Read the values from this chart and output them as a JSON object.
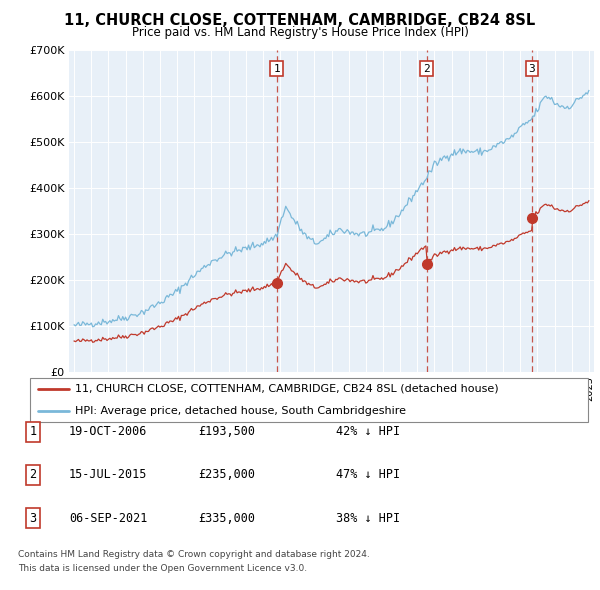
{
  "title": "11, CHURCH CLOSE, COTTENHAM, CAMBRIDGE, CB24 8SL",
  "subtitle": "Price paid vs. HM Land Registry's House Price Index (HPI)",
  "legend_line1": "11, CHURCH CLOSE, COTTENHAM, CAMBRIDGE, CB24 8SL (detached house)",
  "legend_line2": "HPI: Average price, detached house, South Cambridgeshire",
  "sale_year_floats": [
    2006.8,
    2015.54,
    2021.68
  ],
  "sale_prices": [
    193500,
    235000,
    335000
  ],
  "sale_labels": [
    "1",
    "2",
    "3"
  ],
  "table_rows": [
    [
      "1",
      "19-OCT-2006",
      "£193,500",
      "42% ↓ HPI"
    ],
    [
      "2",
      "15-JUL-2015",
      "£235,000",
      "47% ↓ HPI"
    ],
    [
      "3",
      "06-SEP-2021",
      "£335,000",
      "38% ↓ HPI"
    ]
  ],
  "footer_line1": "Contains HM Land Registry data © Crown copyright and database right 2024.",
  "footer_line2": "This data is licensed under the Open Government Licence v3.0.",
  "ylim": [
    0,
    700000
  ],
  "yticks": [
    0,
    100000,
    200000,
    300000,
    400000,
    500000,
    600000,
    700000
  ],
  "ytick_labels": [
    "£0",
    "£100K",
    "£200K",
    "£300K",
    "£400K",
    "£500K",
    "£600K",
    "£700K"
  ],
  "hpi_color": "#7ab8d9",
  "price_color": "#c0392b",
  "vline_color": "#c0392b",
  "plot_bg": "#e8f0f8",
  "xlim_min": 1994.7,
  "xlim_max": 2025.3
}
